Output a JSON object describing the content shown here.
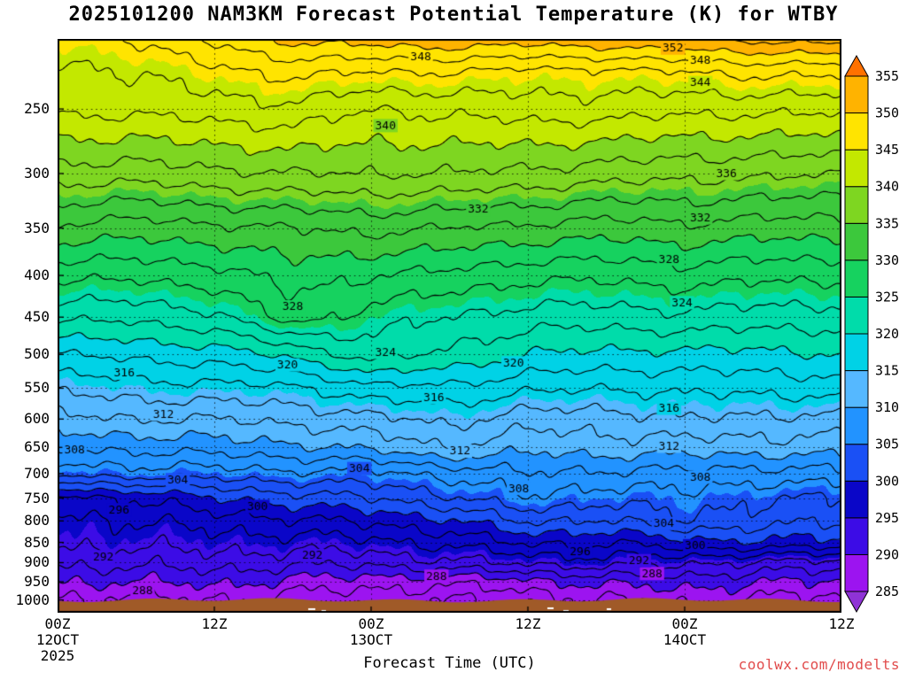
{
  "title": "2025101200 NAM3KM Forecast Potential Temperature (K) for WTBY",
  "watermark": {
    "text": "coolwx.com/modelts",
    "color": "#e14b4b"
  },
  "chart_data": {
    "type": "heatmap",
    "title": "2025101200 NAM3KM Forecast Potential Temperature (K) for WTBY",
    "xlabel": "Forecast Time (UTC)",
    "x_hours": [
      0,
      6,
      12,
      18,
      24,
      30,
      36,
      42,
      48,
      54,
      60
    ],
    "x_ticks": [
      {
        "hour": 0,
        "label": "00Z",
        "date": "12OCT",
        "year": "2025"
      },
      {
        "hour": 12,
        "label": "12Z"
      },
      {
        "hour": 24,
        "label": "00Z",
        "date": "13OCT"
      },
      {
        "hour": 36,
        "label": "12Z"
      },
      {
        "hour": 48,
        "label": "00Z",
        "date": "14OCT"
      },
      {
        "hour": 60,
        "label": "12Z"
      }
    ],
    "y_ticks": [
      250,
      300,
      350,
      400,
      450,
      500,
      550,
      600,
      650,
      700,
      750,
      800,
      850,
      900,
      950,
      1000
    ],
    "pressure_levels": [
      205,
      225,
      250,
      300,
      350,
      400,
      450,
      500,
      550,
      600,
      650,
      700,
      750,
      800,
      850,
      900,
      950,
      1000
    ],
    "theta_grid_K": [
      [
        345.5,
        346,
        348.5,
        350.5,
        351,
        351.5,
        351,
        351.5,
        352,
        352.5,
        353
      ],
      [
        343.5,
        344,
        345.5,
        346.5,
        346,
        346,
        345.5,
        345.5,
        346,
        346.5,
        346.5
      ],
      [
        342.5,
        342.5,
        343,
        343.5,
        342,
        342.5,
        343,
        343,
        342.5,
        342.5,
        342.5
      ],
      [
        337,
        337,
        337.5,
        338,
        338,
        338,
        337.5,
        337,
        336.5,
        336.5,
        336
      ],
      [
        331.5,
        331,
        331.5,
        332,
        332.5,
        332,
        331.5,
        331,
        331.5,
        331,
        331
      ],
      [
        326.5,
        326.5,
        327,
        329,
        328,
        327.5,
        326.5,
        326.5,
        327,
        326.5,
        326.5
      ],
      [
        322.5,
        322.5,
        323.5,
        327,
        325,
        324,
        323,
        323,
        323.5,
        323,
        323
      ],
      [
        318,
        318.5,
        319,
        320.5,
        323,
        321.5,
        320,
        319.5,
        319.5,
        319.5,
        320
      ],
      [
        314.5,
        315,
        315.5,
        315.5,
        317.5,
        317.5,
        316.5,
        316,
        316.5,
        316.5,
        317
      ],
      [
        311.5,
        312,
        312,
        312.5,
        313.5,
        314.5,
        313,
        313,
        314,
        313.5,
        313.5
      ],
      [
        308.5,
        308.5,
        309,
        309.5,
        310.5,
        312,
        310.5,
        311,
        311,
        311,
        311
      ],
      [
        304.5,
        305,
        305,
        305.5,
        305.5,
        306.5,
        308,
        307.5,
        307.5,
        307,
        307.5
      ],
      [
        297.5,
        298,
        300,
        301,
        302,
        303.5,
        306,
        304.5,
        305.5,
        304,
        304
      ],
      [
        295.5,
        296,
        297,
        297.5,
        298.5,
        299.5,
        302.5,
        301.5,
        304,
        302.5,
        302.5
      ],
      [
        294.5,
        294.5,
        295,
        295,
        295.5,
        296.5,
        298.5,
        298,
        299.5,
        299.5,
        299.5
      ],
      [
        292.5,
        292.5,
        293,
        292.5,
        292.5,
        293.5,
        294.5,
        295,
        294.5,
        293.5,
        293.5
      ],
      [
        290,
        290,
        290.5,
        289.5,
        289,
        288.5,
        289.5,
        290.5,
        291,
        290,
        290
      ],
      [
        287.5,
        287.5,
        288,
        287,
        286.5,
        286,
        286.5,
        288,
        288.5,
        287.5,
        287.5
      ]
    ],
    "contour_interval_K": 2,
    "contour_label_interval_K": 4,
    "fill_interval_K": 5,
    "fill_range_K": [
      285,
      355
    ],
    "fill_colors": [
      "#9c14f0",
      "#3c0ce6",
      "#0a06c8",
      "#1a50f5",
      "#2293ff",
      "#55b8ff",
      "#00d2e6",
      "#00dcaa",
      "#16d25f",
      "#3cc83c",
      "#7ed621",
      "#c3e800",
      "#ffe400",
      "#ffb300"
    ],
    "below_range_color": "#8f33d6",
    "above_range_color": "#ff7100",
    "surface_band_color": "#a05a28",
    "contour_labels": [
      {
        "v": 288,
        "t": 6.5,
        "p": 975
      },
      {
        "v": 288,
        "t": 29,
        "p": 935
      },
      {
        "v": 288,
        "t": 45.5,
        "p": 928
      },
      {
        "v": 292,
        "t": 3.5,
        "p": 885
      },
      {
        "v": 292,
        "t": 19.5,
        "p": 882
      },
      {
        "v": 292,
        "t": 44.5,
        "p": 895
      },
      {
        "v": 296,
        "t": 4.7,
        "p": 775
      },
      {
        "v": 296,
        "t": 40,
        "p": 872
      },
      {
        "v": 300,
        "t": 15.3,
        "p": 768
      },
      {
        "v": 300,
        "t": 48.8,
        "p": 858
      },
      {
        "v": 304,
        "t": 9.2,
        "p": 712
      },
      {
        "v": 304,
        "t": 23.1,
        "p": 690
      },
      {
        "v": 304,
        "t": 46.4,
        "p": 806
      },
      {
        "v": 308,
        "t": 1.3,
        "p": 655
      },
      {
        "v": 308,
        "t": 35.3,
        "p": 730
      },
      {
        "v": 308,
        "t": 49.2,
        "p": 707
      },
      {
        "v": 312,
        "t": 8.1,
        "p": 592
      },
      {
        "v": 312,
        "t": 30.8,
        "p": 657
      },
      {
        "v": 312,
        "t": 46.8,
        "p": 648
      },
      {
        "v": 316,
        "t": 5.1,
        "p": 527
      },
      {
        "v": 316,
        "t": 28.8,
        "p": 565
      },
      {
        "v": 316,
        "t": 46.8,
        "p": 582
      },
      {
        "v": 320,
        "t": 17.6,
        "p": 515
      },
      {
        "v": 320,
        "t": 34.9,
        "p": 512
      },
      {
        "v": 324,
        "t": 25.1,
        "p": 497
      },
      {
        "v": 324,
        "t": 47.8,
        "p": 432
      },
      {
        "v": 328,
        "t": 18,
        "p": 437
      },
      {
        "v": 328,
        "t": 46.8,
        "p": 382
      },
      {
        "v": 332,
        "t": 32.2,
        "p": 332
      },
      {
        "v": 332,
        "t": 49.2,
        "p": 340
      },
      {
        "v": 336,
        "t": 51.2,
        "p": 300
      },
      {
        "v": 340,
        "t": 25.1,
        "p": 262
      },
      {
        "v": 344,
        "t": 49.2,
        "p": 232
      },
      {
        "v": 348,
        "t": 27.8,
        "p": 216
      },
      {
        "v": 348,
        "t": 49.2,
        "p": 218
      },
      {
        "v": 352,
        "t": 47.1,
        "p": 210.5
      }
    ]
  }
}
